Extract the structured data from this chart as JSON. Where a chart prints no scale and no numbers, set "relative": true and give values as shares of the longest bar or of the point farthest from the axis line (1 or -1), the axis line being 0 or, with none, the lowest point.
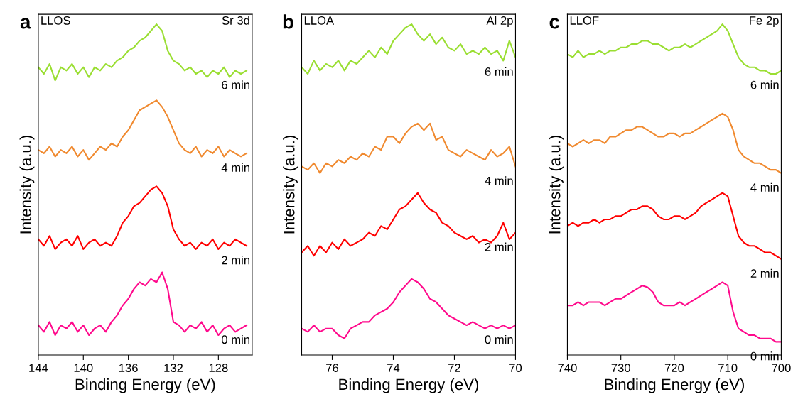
{
  "chart_data": [
    {
      "type": "line",
      "title": "a",
      "annotations": [
        "LLOS",
        "Sr 3d"
      ],
      "xlabel": "Binding Energy (eV)",
      "ylabel": "Intensity (a.u.)",
      "relative": true,
      "xlim": [
        144,
        125
      ],
      "xticks": [
        144,
        140,
        136,
        132,
        128
      ],
      "x": [
        144,
        143.5,
        143,
        142.5,
        142,
        141.5,
        141,
        140.5,
        140,
        139.5,
        139,
        138.5,
        138,
        137.5,
        137,
        136.5,
        136,
        135.5,
        135,
        134.5,
        134,
        133.5,
        133,
        132.5,
        132,
        131.5,
        131,
        130.5,
        130,
        129.5,
        129,
        128.5,
        128,
        127.5,
        127,
        126.5,
        126,
        125.5
      ],
      "series": [
        {
          "name": "6 min",
          "color": "#9ade32",
          "values": [
            0.87,
            0.85,
            0.88,
            0.83,
            0.87,
            0.86,
            0.88,
            0.85,
            0.87,
            0.84,
            0.87,
            0.86,
            0.88,
            0.87,
            0.89,
            0.9,
            0.92,
            0.93,
            0.95,
            0.96,
            0.98,
            1.0,
            0.98,
            0.92,
            0.89,
            0.88,
            0.86,
            0.87,
            0.85,
            0.86,
            0.84,
            0.86,
            0.85,
            0.87,
            0.84,
            0.86,
            0.85,
            0.86
          ]
        },
        {
          "name": "4 min",
          "color": "#f08a30",
          "values": [
            0.62,
            0.61,
            0.63,
            0.6,
            0.62,
            0.61,
            0.63,
            0.6,
            0.62,
            0.59,
            0.61,
            0.63,
            0.62,
            0.64,
            0.63,
            0.66,
            0.68,
            0.71,
            0.74,
            0.75,
            0.76,
            0.77,
            0.75,
            0.72,
            0.68,
            0.64,
            0.62,
            0.61,
            0.63,
            0.6,
            0.62,
            0.61,
            0.63,
            0.6,
            0.62,
            0.61,
            0.6,
            0.61
          ]
        },
        {
          "name": "2 min",
          "color": "#ff0000",
          "values": [
            0.35,
            0.33,
            0.36,
            0.32,
            0.34,
            0.35,
            0.33,
            0.36,
            0.32,
            0.34,
            0.35,
            0.33,
            0.34,
            0.33,
            0.36,
            0.4,
            0.42,
            0.45,
            0.46,
            0.48,
            0.5,
            0.51,
            0.49,
            0.45,
            0.38,
            0.35,
            0.33,
            0.34,
            0.32,
            0.34,
            0.33,
            0.35,
            0.32,
            0.34,
            0.33,
            0.35,
            0.34,
            0.33
          ]
        },
        {
          "name": "0 min",
          "color": "#ff0a8c",
          "values": [
            0.09,
            0.07,
            0.1,
            0.06,
            0.09,
            0.08,
            0.1,
            0.07,
            0.09,
            0.06,
            0.08,
            0.09,
            0.07,
            0.1,
            0.12,
            0.15,
            0.17,
            0.2,
            0.22,
            0.21,
            0.23,
            0.22,
            0.25,
            0.2,
            0.1,
            0.09,
            0.07,
            0.09,
            0.08,
            0.1,
            0.07,
            0.09,
            0.06,
            0.08,
            0.09,
            0.07,
            0.08,
            0.09
          ]
        }
      ]
    },
    {
      "type": "line",
      "title": "b",
      "annotations": [
        "LLOA",
        "Al 2p"
      ],
      "xlabel": "Binding Energy (eV)",
      "ylabel": "Intensity (a.u.)",
      "relative": true,
      "xlim": [
        77,
        70
      ],
      "xticks": [
        76,
        74,
        72,
        70
      ],
      "x": [
        77,
        76.8,
        76.6,
        76.4,
        76.2,
        76,
        75.8,
        75.6,
        75.4,
        75.2,
        75,
        74.8,
        74.6,
        74.4,
        74.2,
        74,
        73.8,
        73.6,
        73.4,
        73.2,
        73,
        72.8,
        72.6,
        72.4,
        72.2,
        72,
        71.8,
        71.6,
        71.4,
        71.2,
        71,
        70.8,
        70.6,
        70.4,
        70.2,
        70
      ],
      "series": [
        {
          "name": "6 min",
          "color": "#9ade32",
          "values": [
            0.87,
            0.85,
            0.89,
            0.86,
            0.88,
            0.87,
            0.89,
            0.86,
            0.89,
            0.88,
            0.9,
            0.92,
            0.9,
            0.93,
            0.91,
            0.95,
            0.97,
            0.99,
            1.0,
            0.97,
            0.95,
            0.97,
            0.94,
            0.96,
            0.93,
            0.92,
            0.94,
            0.91,
            0.92,
            0.91,
            0.93,
            0.91,
            0.92,
            0.89,
            0.95,
            0.9
          ]
        },
        {
          "name": "4 min",
          "color": "#f08a30",
          "values": [
            0.57,
            0.56,
            0.58,
            0.55,
            0.58,
            0.57,
            0.59,
            0.58,
            0.6,
            0.59,
            0.61,
            0.6,
            0.63,
            0.62,
            0.66,
            0.66,
            0.64,
            0.67,
            0.69,
            0.7,
            0.68,
            0.7,
            0.65,
            0.66,
            0.62,
            0.61,
            0.6,
            0.62,
            0.61,
            0.6,
            0.59,
            0.62,
            0.6,
            0.61,
            0.63,
            0.57
          ]
        },
        {
          "name": "2 min",
          "color": "#ff0000",
          "values": [
            0.31,
            0.33,
            0.3,
            0.33,
            0.31,
            0.34,
            0.32,
            0.35,
            0.33,
            0.34,
            0.35,
            0.37,
            0.36,
            0.39,
            0.38,
            0.41,
            0.44,
            0.45,
            0.47,
            0.49,
            0.46,
            0.44,
            0.43,
            0.4,
            0.39,
            0.37,
            0.36,
            0.35,
            0.36,
            0.34,
            0.35,
            0.34,
            0.36,
            0.4,
            0.35,
            0.37
          ]
        },
        {
          "name": "0 min",
          "color": "#ff0a8c",
          "values": [
            0.08,
            0.07,
            0.09,
            0.07,
            0.08,
            0.08,
            0.06,
            0.05,
            0.08,
            0.09,
            0.1,
            0.1,
            0.12,
            0.13,
            0.14,
            0.16,
            0.19,
            0.21,
            0.23,
            0.22,
            0.2,
            0.17,
            0.16,
            0.14,
            0.12,
            0.11,
            0.1,
            0.09,
            0.1,
            0.09,
            0.08,
            0.09,
            0.08,
            0.09,
            0.08,
            0.09
          ]
        }
      ]
    },
    {
      "type": "line",
      "title": "c",
      "annotations": [
        "LLOF",
        "Fe 2p"
      ],
      "xlabel": "Binding Energy (eV)",
      "ylabel": "Intensity (a.u.)",
      "relative": true,
      "xlim": [
        740,
        700
      ],
      "xticks": [
        740,
        730,
        720,
        710,
        700
      ],
      "x": [
        740,
        739,
        738,
        737,
        736,
        735,
        734,
        733,
        732,
        731,
        730,
        729,
        728,
        727,
        726,
        725,
        724,
        723,
        722,
        721,
        720,
        719,
        718,
        717,
        716,
        715,
        714,
        713,
        712,
        711,
        710,
        709,
        708,
        707,
        706,
        705,
        704,
        703,
        702,
        701,
        700
      ],
      "series": [
        {
          "name": "6 min",
          "color": "#9ade32",
          "values": [
            0.91,
            0.9,
            0.92,
            0.9,
            0.91,
            0.91,
            0.92,
            0.91,
            0.92,
            0.92,
            0.93,
            0.93,
            0.94,
            0.94,
            0.95,
            0.95,
            0.94,
            0.94,
            0.93,
            0.92,
            0.93,
            0.93,
            0.94,
            0.93,
            0.94,
            0.95,
            0.96,
            0.97,
            0.98,
            1.0,
            0.98,
            0.94,
            0.9,
            0.88,
            0.87,
            0.87,
            0.86,
            0.86,
            0.85,
            0.85,
            0.86
          ]
        },
        {
          "name": "4 min",
          "color": "#f08a30",
          "values": [
            0.64,
            0.63,
            0.64,
            0.65,
            0.64,
            0.65,
            0.65,
            0.64,
            0.66,
            0.66,
            0.67,
            0.68,
            0.68,
            0.69,
            0.69,
            0.68,
            0.67,
            0.66,
            0.66,
            0.67,
            0.67,
            0.66,
            0.67,
            0.67,
            0.68,
            0.69,
            0.7,
            0.71,
            0.72,
            0.73,
            0.72,
            0.68,
            0.62,
            0.6,
            0.59,
            0.58,
            0.58,
            0.57,
            0.56,
            0.56,
            0.55
          ]
        },
        {
          "name": "2 min",
          "color": "#ff0000",
          "values": [
            0.39,
            0.4,
            0.39,
            0.4,
            0.4,
            0.41,
            0.4,
            0.41,
            0.41,
            0.42,
            0.42,
            0.43,
            0.44,
            0.44,
            0.45,
            0.45,
            0.44,
            0.42,
            0.41,
            0.41,
            0.42,
            0.42,
            0.41,
            0.42,
            0.43,
            0.45,
            0.46,
            0.47,
            0.48,
            0.49,
            0.48,
            0.42,
            0.36,
            0.34,
            0.33,
            0.33,
            0.32,
            0.31,
            0.31,
            0.3,
            0.29
          ]
        },
        {
          "name": "0 min",
          "color": "#ff0a8c",
          "values": [
            0.15,
            0.15,
            0.16,
            0.15,
            0.16,
            0.16,
            0.16,
            0.15,
            0.16,
            0.17,
            0.17,
            0.18,
            0.19,
            0.2,
            0.21,
            0.205,
            0.19,
            0.16,
            0.15,
            0.15,
            0.15,
            0.16,
            0.15,
            0.16,
            0.17,
            0.18,
            0.19,
            0.2,
            0.21,
            0.22,
            0.21,
            0.13,
            0.08,
            0.07,
            0.06,
            0.06,
            0.05,
            0.05,
            0.05,
            0.04,
            0.04
          ]
        }
      ]
    }
  ]
}
